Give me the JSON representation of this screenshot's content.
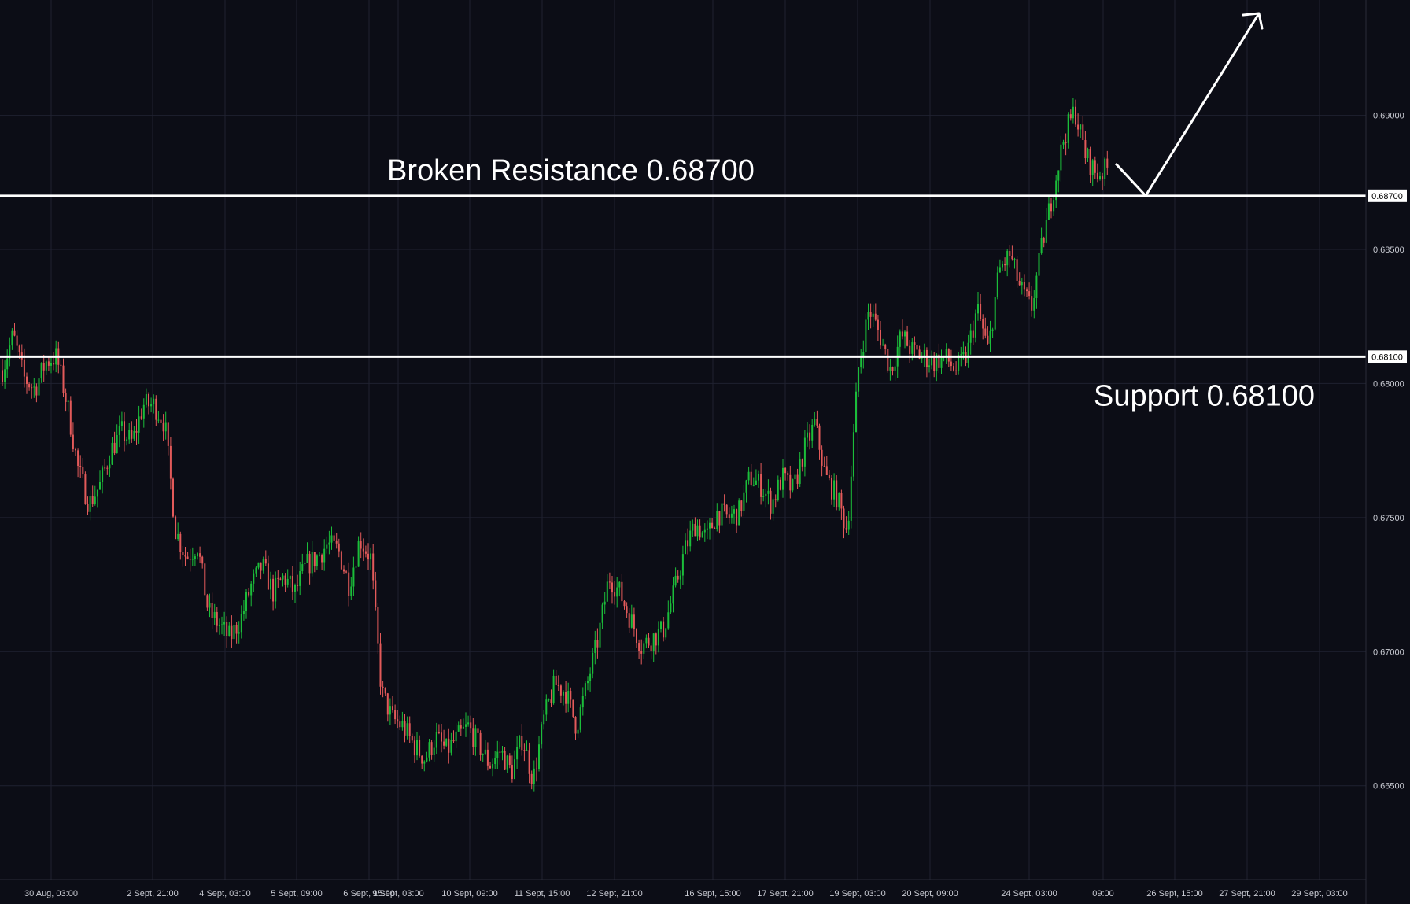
{
  "chart_data": {
    "type": "candlestick",
    "ylim": [
      0.6615,
      0.6943
    ],
    "y_ticks": [
      "0.66500",
      "0.67000",
      "0.67500",
      "0.68000",
      "0.68500",
      "0.69000"
    ],
    "x_ticks": [
      "30 Aug, 03:00",
      "2 Sept, 21:00",
      "4 Sept, 03:00",
      "5 Sept, 09:00",
      "6 Sept, 15:00",
      "9 Sept, 03:00",
      "10 Sept, 09:00",
      "11 Sept, 15:00",
      "12 Sept, 21:00",
      "16 Sept, 15:00",
      "17 Sept, 21:00",
      "19 Sept, 03:00",
      "20 Sept, 09:00",
      "24 Sept, 03:00",
      "09:00",
      "26 Sept, 15:00",
      "27 Sept, 21:00",
      "29 Sept, 03:00"
    ],
    "levels": [
      {
        "label": "Broken Resistance 0.68700",
        "value": 0.687,
        "price_tag": "0.68700"
      },
      {
        "label": "Support 0.68100",
        "value": 0.681,
        "price_tag": "0.68100"
      }
    ],
    "grid": true,
    "projection": {
      "description": "pullback to broken resistance then continuation higher",
      "points": [
        0.6882,
        0.687,
        0.6938
      ]
    },
    "price_path": [
      0.6805,
      0.6818,
      0.6802,
      0.6798,
      0.6808,
      0.681,
      0.6792,
      0.6768,
      0.6755,
      0.6762,
      0.6775,
      0.6782,
      0.6778,
      0.6792,
      0.6792,
      0.6785,
      0.6745,
      0.6735,
      0.674,
      0.6715,
      0.671,
      0.6705,
      0.6712,
      0.6725,
      0.6732,
      0.6722,
      0.6728,
      0.6722,
      0.6732,
      0.6735,
      0.674,
      0.6738,
      0.6725,
      0.6742,
      0.6735,
      0.6685,
      0.6675,
      0.6672,
      0.6665,
      0.666,
      0.6668,
      0.6663,
      0.6668,
      0.6672,
      0.6665,
      0.6658,
      0.6663,
      0.6655,
      0.6668,
      0.6652,
      0.6675,
      0.6688,
      0.6685,
      0.6672,
      0.6688,
      0.6705,
      0.6728,
      0.6722,
      0.6712,
      0.6702,
      0.6705,
      0.6708,
      0.6722,
      0.6738,
      0.6748,
      0.6742,
      0.6752,
      0.675,
      0.6752,
      0.6765,
      0.6762,
      0.6755,
      0.6765,
      0.676,
      0.6775,
      0.6785,
      0.6765,
      0.6758,
      0.6745,
      0.6805,
      0.6828,
      0.6818,
      0.6805,
      0.6818,
      0.6812,
      0.681,
      0.6808,
      0.681,
      0.6805,
      0.681,
      0.6828,
      0.6812,
      0.6842,
      0.6848,
      0.6835,
      0.6828,
      0.6852,
      0.6872,
      0.6892,
      0.6902,
      0.6885,
      0.6878,
      0.688
    ]
  }
}
